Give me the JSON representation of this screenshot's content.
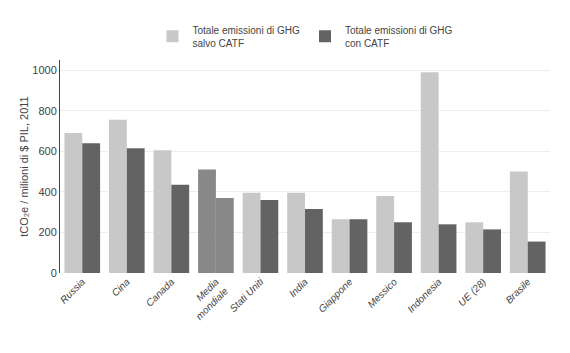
{
  "chart_data": {
    "type": "bar",
    "categories": [
      "Russia",
      "Cina",
      "Canada",
      "Media\nmondiale",
      "Stati Uniti",
      "India",
      "Giappone",
      "Messico",
      "Indonesia",
      "UE (28)",
      "Brasile"
    ],
    "series": [
      {
        "name": "Totale emissioni di GHG\nsalvo CATF",
        "colors": [
          "#c8c8c8",
          "#c8c8c8",
          "#c8c8c8",
          "#888888",
          "#c8c8c8",
          "#c8c8c8",
          "#c8c8c8",
          "#c8c8c8",
          "#c8c8c8",
          "#c8c8c8",
          "#c8c8c8"
        ],
        "values": [
          690,
          755,
          605,
          510,
          395,
          395,
          265,
          380,
          990,
          250,
          500
        ]
      },
      {
        "name": "Totale emissioni di GHG\ncon CATF",
        "colors": [
          "#636363",
          "#636363",
          "#636363",
          "#888888",
          "#636363",
          "#636363",
          "#636363",
          "#636363",
          "#636363",
          "#636363",
          "#636363"
        ],
        "values": [
          640,
          615,
          435,
          370,
          360,
          315,
          265,
          250,
          240,
          215,
          155
        ]
      }
    ],
    "ylabel": "tCO₂e / milioni di $ PIL, 2011",
    "ylim": [
      0,
      1050
    ],
    "yticks": [
      0,
      200,
      400,
      600,
      800,
      1000
    ],
    "grid": true,
    "legend": "top"
  }
}
